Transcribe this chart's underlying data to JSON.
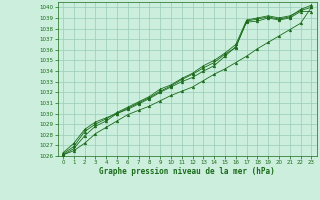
{
  "xlabel": "Graphe pression niveau de la mer (hPa)",
  "bg_color": "#cceedd",
  "line_color": "#1a6b1a",
  "marker_color": "#1a6b1a",
  "grid_color": "#99ccbb",
  "text_color": "#1a6b1a",
  "ylim": [
    1026,
    1040.5
  ],
  "xlim": [
    -0.5,
    23.5
  ],
  "yticks": [
    1026,
    1027,
    1028,
    1029,
    1030,
    1031,
    1032,
    1033,
    1034,
    1035,
    1036,
    1037,
    1038,
    1039,
    1040
  ],
  "xticks": [
    0,
    1,
    2,
    3,
    4,
    5,
    6,
    7,
    8,
    9,
    10,
    11,
    12,
    13,
    14,
    15,
    16,
    17,
    18,
    19,
    20,
    21,
    22,
    23
  ],
  "series": [
    [
      1026.1,
      1026.5,
      1027.2,
      1028.1,
      1028.7,
      1029.3,
      1029.9,
      1030.3,
      1030.7,
      1031.2,
      1031.7,
      1032.1,
      1032.5,
      1033.1,
      1033.7,
      1034.2,
      1034.8,
      1035.4,
      1036.1,
      1036.7,
      1037.3,
      1037.9,
      1038.5,
      1040.0
    ],
    [
      1026.1,
      1026.7,
      1027.9,
      1028.8,
      1029.3,
      1030.0,
      1030.4,
      1030.9,
      1031.4,
      1032.0,
      1032.5,
      1033.0,
      1033.4,
      1034.0,
      1034.5,
      1035.4,
      1036.3,
      1038.6,
      1038.7,
      1039.0,
      1038.8,
      1039.0,
      1039.6,
      1039.6
    ],
    [
      1026.2,
      1026.9,
      1028.3,
      1029.0,
      1029.5,
      1030.1,
      1030.6,
      1031.1,
      1031.6,
      1032.3,
      1032.7,
      1033.3,
      1033.8,
      1034.5,
      1035.0,
      1035.7,
      1036.5,
      1038.8,
      1039.0,
      1039.2,
      1039.0,
      1039.2,
      1039.7,
      1040.0
    ],
    [
      1026.3,
      1027.2,
      1028.5,
      1029.2,
      1029.6,
      1030.0,
      1030.5,
      1031.0,
      1031.5,
      1032.1,
      1032.6,
      1033.2,
      1033.7,
      1034.3,
      1034.8,
      1035.6,
      1036.2,
      1038.7,
      1038.9,
      1039.1,
      1038.9,
      1039.1,
      1039.8,
      1040.2
    ]
  ]
}
